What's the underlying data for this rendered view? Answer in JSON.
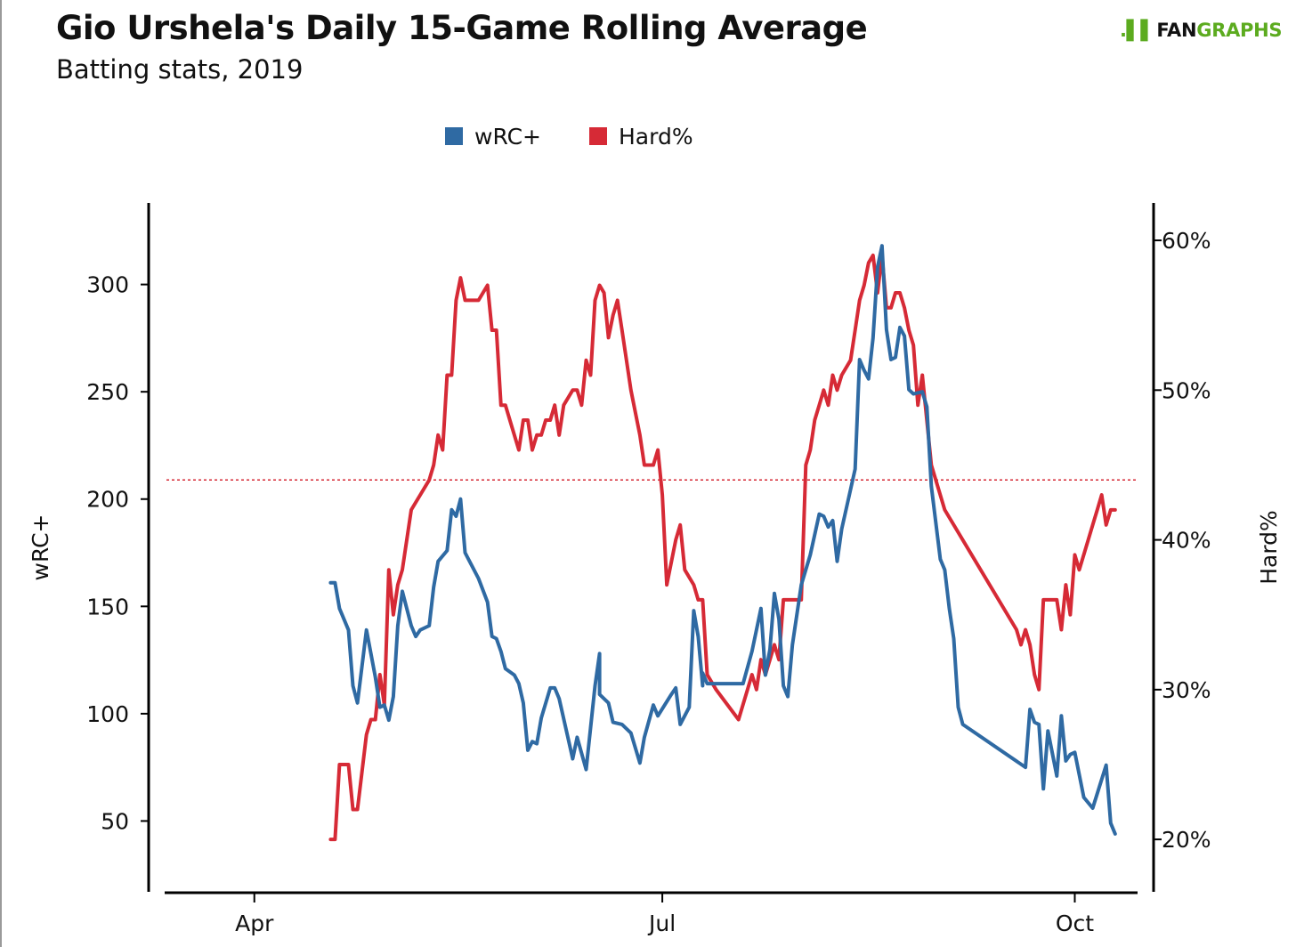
{
  "header": {
    "title": "Gio Urshela's Daily 15-Game Rolling Average",
    "subtitle": "Batting stats, 2019"
  },
  "logo": {
    "mark": ".▌▌",
    "text_dark": "FAN",
    "text_green": "GRAPHS"
  },
  "colors": {
    "wrc": "#2f6aa3",
    "hard": "#d62a36",
    "ref": "#d62a36",
    "logo_green": "#5cab1f"
  },
  "chart_data": {
    "type": "line",
    "title": "Gio Urshela's Daily 15-Game Rolling Average",
    "subtitle": "Batting stats, 2019",
    "legend": {
      "placement": "top-center",
      "entries": [
        "wRC+",
        "Hard%"
      ]
    },
    "grid": false,
    "x_axis": {
      "type": "date",
      "range": [
        "2019-03-12",
        "2019-10-15"
      ],
      "ticks": [
        {
          "date": "2019-04-01",
          "label": "Apr"
        },
        {
          "date": "2019-07-01",
          "label": "Jul"
        },
        {
          "date": "2019-10-01",
          "label": "Oct"
        }
      ]
    },
    "y_left": {
      "label": "wRC+",
      "range": [
        17,
        338
      ],
      "ticks": [
        50,
        100,
        150,
        200,
        250,
        300
      ]
    },
    "y_right": {
      "label": "Hard%",
      "range": [
        0.165,
        0.625
      ],
      "ticks": [
        0.2,
        0.3,
        0.4,
        0.5,
        0.6
      ],
      "tick_labels": [
        "20%",
        "30%",
        "40%",
        "50%",
        "60%"
      ]
    },
    "reference_lines": [
      {
        "axis": "right",
        "value": 0.44,
        "style": "dotted"
      }
    ],
    "series": [
      {
        "name": "wRC+",
        "axis": "left",
        "points": [
          [
            "2019-04-18",
            161
          ],
          [
            "2019-04-19",
            161
          ],
          [
            "2019-04-20",
            149
          ],
          [
            "2019-04-22",
            139
          ],
          [
            "2019-04-23",
            113
          ],
          [
            "2019-04-24",
            105
          ],
          [
            "2019-04-26",
            139
          ],
          [
            "2019-04-28",
            117
          ],
          [
            "2019-04-29",
            103
          ],
          [
            "2019-04-30",
            104
          ],
          [
            "2019-05-01",
            97
          ],
          [
            "2019-05-02",
            108
          ],
          [
            "2019-05-03",
            141
          ],
          [
            "2019-05-04",
            157
          ],
          [
            "2019-05-06",
            141
          ],
          [
            "2019-05-07",
            136
          ],
          [
            "2019-05-08",
            139
          ],
          [
            "2019-05-10",
            141
          ],
          [
            "2019-05-11",
            159
          ],
          [
            "2019-05-12",
            171
          ],
          [
            "2019-05-14",
            176
          ],
          [
            "2019-05-15",
            195
          ],
          [
            "2019-05-16",
            192
          ],
          [
            "2019-05-17",
            200
          ],
          [
            "2019-05-18",
            175
          ],
          [
            "2019-05-21",
            163
          ],
          [
            "2019-05-23",
            152
          ],
          [
            "2019-05-24",
            136
          ],
          [
            "2019-05-25",
            135
          ],
          [
            "2019-05-26",
            129
          ],
          [
            "2019-05-27",
            121
          ],
          [
            "2019-05-29",
            118
          ],
          [
            "2019-05-30",
            114
          ],
          [
            "2019-05-31",
            105
          ],
          [
            "2019-06-01",
            83
          ],
          [
            "2019-06-02",
            87
          ],
          [
            "2019-06-03",
            86
          ],
          [
            "2019-06-04",
            98
          ],
          [
            "2019-06-06",
            112
          ],
          [
            "2019-06-07",
            112
          ],
          [
            "2019-06-08",
            107
          ],
          [
            "2019-06-11",
            79
          ],
          [
            "2019-06-12",
            89
          ],
          [
            "2019-06-14",
            74
          ],
          [
            "2019-06-16",
            113
          ],
          [
            "2019-06-17",
            128
          ],
          [
            "2019-06-17",
            109
          ],
          [
            "2019-06-19",
            105
          ],
          [
            "2019-06-20",
            96
          ],
          [
            "2019-06-22",
            95
          ],
          [
            "2019-06-24",
            91
          ],
          [
            "2019-06-26",
            77
          ],
          [
            "2019-06-27",
            89
          ],
          [
            "2019-06-29",
            104
          ],
          [
            "2019-06-30",
            99
          ],
          [
            "2019-07-03",
            109
          ],
          [
            "2019-07-04",
            112
          ],
          [
            "2019-07-05",
            95
          ],
          [
            "2019-07-07",
            103
          ],
          [
            "2019-07-08",
            148
          ],
          [
            "2019-07-09",
            136
          ],
          [
            "2019-07-10",
            113
          ],
          [
            "2019-07-10",
            119
          ],
          [
            "2019-07-11",
            114
          ],
          [
            "2019-07-19",
            114
          ],
          [
            "2019-07-21",
            129
          ],
          [
            "2019-07-23",
            149
          ],
          [
            "2019-07-24",
            118
          ],
          [
            "2019-07-25",
            130
          ],
          [
            "2019-07-26",
            156
          ],
          [
            "2019-07-27",
            144
          ],
          [
            "2019-07-28",
            113
          ],
          [
            "2019-07-29",
            108
          ],
          [
            "2019-07-30",
            132
          ],
          [
            "2019-08-01",
            160
          ],
          [
            "2019-08-03",
            174
          ],
          [
            "2019-08-05",
            193
          ],
          [
            "2019-08-06",
            192
          ],
          [
            "2019-08-07",
            187
          ],
          [
            "2019-08-08",
            190
          ],
          [
            "2019-08-09",
            171
          ],
          [
            "2019-08-10",
            186
          ],
          [
            "2019-08-13",
            214
          ],
          [
            "2019-08-14",
            265
          ],
          [
            "2019-08-15",
            260
          ],
          [
            "2019-08-16",
            256
          ],
          [
            "2019-08-17",
            275
          ],
          [
            "2019-08-18",
            308
          ],
          [
            "2019-08-19",
            318
          ],
          [
            "2019-08-20",
            279
          ],
          [
            "2019-08-21",
            265
          ],
          [
            "2019-08-22",
            266
          ],
          [
            "2019-08-23",
            280
          ],
          [
            "2019-08-24",
            276
          ],
          [
            "2019-08-25",
            251
          ],
          [
            "2019-08-26",
            249
          ],
          [
            "2019-08-28",
            250
          ],
          [
            "2019-08-29",
            243
          ],
          [
            "2019-08-30",
            206
          ],
          [
            "2019-09-01",
            172
          ],
          [
            "2019-09-02",
            167
          ],
          [
            "2019-09-03",
            149
          ],
          [
            "2019-09-04",
            135
          ],
          [
            "2019-09-05",
            103
          ],
          [
            "2019-09-06",
            95
          ],
          [
            "2019-09-20",
            75
          ],
          [
            "2019-09-21",
            102
          ],
          [
            "2019-09-22",
            96
          ],
          [
            "2019-09-23",
            95
          ],
          [
            "2019-09-24",
            65
          ],
          [
            "2019-09-25",
            92
          ],
          [
            "2019-09-27",
            71
          ],
          [
            "2019-09-28",
            99
          ],
          [
            "2019-09-29",
            78
          ],
          [
            "2019-09-30",
            81
          ],
          [
            "2019-10-01",
            82
          ],
          [
            "2019-10-03",
            61
          ],
          [
            "2019-10-05",
            56
          ],
          [
            "2019-10-08",
            76
          ],
          [
            "2019-10-09",
            49
          ],
          [
            "2019-10-10",
            44
          ]
        ]
      },
      {
        "name": "Hard%",
        "axis": "right",
        "points": [
          [
            "2019-04-18",
            0.2
          ],
          [
            "2019-04-19",
            0.2
          ],
          [
            "2019-04-20",
            0.25
          ],
          [
            "2019-04-22",
            0.25
          ],
          [
            "2019-04-23",
            0.22
          ],
          [
            "2019-04-24",
            0.22
          ],
          [
            "2019-04-26",
            0.27
          ],
          [
            "2019-04-27",
            0.28
          ],
          [
            "2019-04-28",
            0.28
          ],
          [
            "2019-04-29",
            0.31
          ],
          [
            "2019-04-30",
            0.29
          ],
          [
            "2019-05-01",
            0.38
          ],
          [
            "2019-05-02",
            0.35
          ],
          [
            "2019-05-03",
            0.37
          ],
          [
            "2019-05-04",
            0.38
          ],
          [
            "2019-05-06",
            0.42
          ],
          [
            "2019-05-08",
            0.43
          ],
          [
            "2019-05-10",
            0.44
          ],
          [
            "2019-05-11",
            0.45
          ],
          [
            "2019-05-12",
            0.47
          ],
          [
            "2019-05-13",
            0.46
          ],
          [
            "2019-05-14",
            0.51
          ],
          [
            "2019-05-15",
            0.51
          ],
          [
            "2019-05-16",
            0.56
          ],
          [
            "2019-05-17",
            0.575
          ],
          [
            "2019-05-18",
            0.56
          ],
          [
            "2019-05-21",
            0.56
          ],
          [
            "2019-05-22",
            0.565
          ],
          [
            "2019-05-23",
            0.57
          ],
          [
            "2019-05-24",
            0.54
          ],
          [
            "2019-05-25",
            0.54
          ],
          [
            "2019-05-26",
            0.49
          ],
          [
            "2019-05-27",
            0.49
          ],
          [
            "2019-05-28",
            0.48
          ],
          [
            "2019-05-30",
            0.46
          ],
          [
            "2019-05-31",
            0.48
          ],
          [
            "2019-06-01",
            0.48
          ],
          [
            "2019-06-02",
            0.46
          ],
          [
            "2019-06-03",
            0.47
          ],
          [
            "2019-06-04",
            0.47
          ],
          [
            "2019-06-05",
            0.48
          ],
          [
            "2019-06-06",
            0.48
          ],
          [
            "2019-06-07",
            0.49
          ],
          [
            "2019-06-08",
            0.47
          ],
          [
            "2019-06-09",
            0.49
          ],
          [
            "2019-06-11",
            0.5
          ],
          [
            "2019-06-12",
            0.5
          ],
          [
            "2019-06-13",
            0.49
          ],
          [
            "2019-06-14",
            0.52
          ],
          [
            "2019-06-15",
            0.51
          ],
          [
            "2019-06-16",
            0.56
          ],
          [
            "2019-06-17",
            0.57
          ],
          [
            "2019-06-18",
            0.565
          ],
          [
            "2019-06-19",
            0.535
          ],
          [
            "2019-06-20",
            0.55
          ],
          [
            "2019-06-21",
            0.56
          ],
          [
            "2019-06-22",
            0.54
          ],
          [
            "2019-06-24",
            0.5
          ],
          [
            "2019-06-26",
            0.47
          ],
          [
            "2019-06-27",
            0.45
          ],
          [
            "2019-06-29",
            0.45
          ],
          [
            "2019-06-30",
            0.46
          ],
          [
            "2019-07-01",
            0.43
          ],
          [
            "2019-07-02",
            0.37
          ],
          [
            "2019-07-04",
            0.4
          ],
          [
            "2019-07-05",
            0.41
          ],
          [
            "2019-07-06",
            0.38
          ],
          [
            "2019-07-08",
            0.37
          ],
          [
            "2019-07-09",
            0.36
          ],
          [
            "2019-07-10",
            0.36
          ],
          [
            "2019-07-11",
            0.31
          ],
          [
            "2019-07-13",
            0.3
          ],
          [
            "2019-07-18",
            0.28
          ],
          [
            "2019-07-20",
            0.3
          ],
          [
            "2019-07-21",
            0.31
          ],
          [
            "2019-07-22",
            0.3
          ],
          [
            "2019-07-23",
            0.32
          ],
          [
            "2019-07-24",
            0.31
          ],
          [
            "2019-07-25",
            0.32
          ],
          [
            "2019-07-26",
            0.33
          ],
          [
            "2019-07-27",
            0.32
          ],
          [
            "2019-07-28",
            0.36
          ],
          [
            "2019-08-01",
            0.36
          ],
          [
            "2019-08-02",
            0.45
          ],
          [
            "2019-08-03",
            0.46
          ],
          [
            "2019-08-04",
            0.48
          ],
          [
            "2019-08-05",
            0.49
          ],
          [
            "2019-08-06",
            0.5
          ],
          [
            "2019-08-07",
            0.49
          ],
          [
            "2019-08-08",
            0.51
          ],
          [
            "2019-08-09",
            0.5
          ],
          [
            "2019-08-10",
            0.51
          ],
          [
            "2019-08-12",
            0.52
          ],
          [
            "2019-08-13",
            0.54
          ],
          [
            "2019-08-14",
            0.56
          ],
          [
            "2019-08-15",
            0.57
          ],
          [
            "2019-08-16",
            0.585
          ],
          [
            "2019-08-17",
            0.59
          ],
          [
            "2019-08-18",
            0.565
          ],
          [
            "2019-08-19",
            0.59
          ],
          [
            "2019-08-20",
            0.555
          ],
          [
            "2019-08-21",
            0.555
          ],
          [
            "2019-08-22",
            0.565
          ],
          [
            "2019-08-23",
            0.565
          ],
          [
            "2019-08-24",
            0.555
          ],
          [
            "2019-08-25",
            0.54
          ],
          [
            "2019-08-26",
            0.53
          ],
          [
            "2019-08-27",
            0.49
          ],
          [
            "2019-08-28",
            0.51
          ],
          [
            "2019-08-30",
            0.45
          ],
          [
            "2019-09-02",
            0.42
          ],
          [
            "2019-09-18",
            0.34
          ],
          [
            "2019-09-19",
            0.33
          ],
          [
            "2019-09-20",
            0.34
          ],
          [
            "2019-09-21",
            0.33
          ],
          [
            "2019-09-22",
            0.31
          ],
          [
            "2019-09-23",
            0.3
          ],
          [
            "2019-09-24",
            0.36
          ],
          [
            "2019-09-25",
            0.36
          ],
          [
            "2019-09-26",
            0.36
          ],
          [
            "2019-09-27",
            0.36
          ],
          [
            "2019-09-28",
            0.34
          ],
          [
            "2019-09-29",
            0.37
          ],
          [
            "2019-09-30",
            0.35
          ],
          [
            "2019-10-01",
            0.39
          ],
          [
            "2019-10-02",
            0.38
          ],
          [
            "2019-10-04",
            0.4
          ],
          [
            "2019-10-05",
            0.41
          ],
          [
            "2019-10-06",
            0.42
          ],
          [
            "2019-10-07",
            0.43
          ],
          [
            "2019-10-08",
            0.41
          ],
          [
            "2019-10-09",
            0.42
          ],
          [
            "2019-10-10",
            0.42
          ]
        ]
      }
    ]
  }
}
